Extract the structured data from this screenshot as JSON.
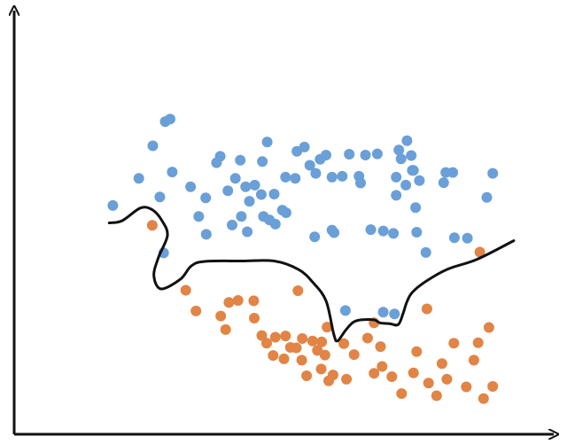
{
  "chart_data": {
    "type": "scatter",
    "title": "",
    "xlabel": "",
    "ylabel": "",
    "xlim": [
      0,
      100
    ],
    "ylim": [
      0,
      100
    ],
    "grid": false,
    "ticks": false,
    "colors": {
      "class_a": "#6a9fd8",
      "class_b": "#e18445",
      "boundary": "#111111",
      "axis": "#111111"
    },
    "series": [
      {
        "points": [
          [
            18.3,
            54.0
          ],
          [
            23.1,
            60.4
          ],
          [
            25.7,
            68.1
          ],
          [
            28.0,
            73.8
          ],
          [
            28.9,
            74.4
          ],
          [
            27.0,
            56.0
          ],
          [
            29.3,
            61.9
          ],
          [
            27.7,
            42.8
          ],
          [
            32.7,
            58.4
          ],
          [
            34.2,
            51.4
          ],
          [
            35.5,
            55.8
          ],
          [
            37.5,
            64.1
          ],
          [
            35.6,
            47.2
          ],
          [
            38.2,
            65.6
          ],
          [
            41.0,
            60.4
          ],
          [
            39.6,
            57.5
          ],
          [
            40.4,
            49.4
          ],
          [
            41.9,
            64.7
          ],
          [
            42.9,
            58.4
          ],
          [
            43.6,
            55.0
          ],
          [
            42.1,
            51.4
          ],
          [
            44.6,
            58.8
          ],
          [
            43.2,
            47.8
          ],
          [
            45.8,
            56.6
          ],
          [
            46.9,
            69.0
          ],
          [
            46.0,
            64.4
          ],
          [
            46.2,
            51.4
          ],
          [
            47.3,
            50.6
          ],
          [
            48.2,
            56.7
          ],
          [
            48.4,
            49.6
          ],
          [
            50.4,
            52.3
          ],
          [
            52.4,
            66.8
          ],
          [
            49.7,
            52.9
          ],
          [
            50.3,
            60.7
          ],
          [
            52.1,
            60.4
          ],
          [
            53.8,
            67.8
          ],
          [
            54.8,
            63.5
          ],
          [
            55.9,
            61.6
          ],
          [
            55.7,
            46.6
          ],
          [
            56.7,
            64.9
          ],
          [
            57.8,
            65.9
          ],
          [
            59.3,
            47.6
          ],
          [
            58.9,
            60.7
          ],
          [
            58.9,
            48.2
          ],
          [
            60.8,
            60.9
          ],
          [
            62.1,
            66.1
          ],
          [
            64.2,
            59.3
          ],
          [
            63.9,
            60.9
          ],
          [
            65.1,
            65.9
          ],
          [
            66.1,
            48.3
          ],
          [
            67.3,
            66.2
          ],
          [
            68.4,
            48.0
          ],
          [
            70.3,
            47.4
          ],
          [
            70.8,
            56.4
          ],
          [
            70.8,
            60.7
          ],
          [
            71.7,
            65.0
          ],
          [
            71.3,
            67.1
          ],
          [
            72.8,
            69.3
          ],
          [
            73.8,
            62.3
          ],
          [
            72.6,
            58.8
          ],
          [
            75.1,
            59.9
          ],
          [
            74.0,
            62.3
          ],
          [
            73.6,
            65.8
          ],
          [
            74.4,
            53.5
          ],
          [
            74.6,
            47.7
          ],
          [
            76.3,
            42.9
          ],
          [
            79.6,
            59.4
          ],
          [
            80.0,
            61.8
          ],
          [
            81.3,
            61.8
          ],
          [
            81.6,
            46.4
          ],
          [
            84.0,
            46.3
          ],
          [
            87.6,
            55.9
          ],
          [
            88.7,
            61.6
          ],
          [
            61.4,
            29.2
          ],
          [
            70.5,
            28.4
          ],
          [
            68.4,
            28.8
          ]
        ]
      },
      {
        "points": [
          [
            25.6,
            49.3
          ],
          [
            31.8,
            34.0
          ],
          [
            33.7,
            29.1
          ],
          [
            38.3,
            27.9
          ],
          [
            39.2,
            24.7
          ],
          [
            39.8,
            31.1
          ],
          [
            41.5,
            31.6
          ],
          [
            44.4,
            31.5
          ],
          [
            44.5,
            27.4
          ],
          [
            45.9,
            23.3
          ],
          [
            46.8,
            21.5
          ],
          [
            48.0,
            18.6
          ],
          [
            48.4,
            22.9
          ],
          [
            50.3,
            23.2
          ],
          [
            50.0,
            17.8
          ],
          [
            51.2,
            20.5
          ],
          [
            52.3,
            20.4
          ],
          [
            52.6,
            33.9
          ],
          [
            53.3,
            17.5
          ],
          [
            53.4,
            22.6
          ],
          [
            55.3,
            22.0
          ],
          [
            54.2,
            13.8
          ],
          [
            56.2,
            19.8
          ],
          [
            56.9,
            15.4
          ],
          [
            57.0,
            21.8
          ],
          [
            58.0,
            25.3
          ],
          [
            57.6,
            18.7
          ],
          [
            58.3,
            12.6
          ],
          [
            59.1,
            14.0
          ],
          [
            61.1,
            21.4
          ],
          [
            61.6,
            13.0
          ],
          [
            63.0,
            18.8
          ],
          [
            65.5,
            22.7
          ],
          [
            66.7,
            26.3
          ],
          [
            66.7,
            14.4
          ],
          [
            67.9,
            20.7
          ],
          [
            68.2,
            16.0
          ],
          [
            70.0,
            13.6
          ],
          [
            71.8,
            9.6
          ],
          [
            74.0,
            14.5
          ],
          [
            74.6,
            19.5
          ],
          [
            76.5,
            29.6
          ],
          [
            76.8,
            12.1
          ],
          [
            78.3,
            9.1
          ],
          [
            79.3,
            16.7
          ],
          [
            80.2,
            13.0
          ],
          [
            81.5,
            21.5
          ],
          [
            83.8,
            11.2
          ],
          [
            85.2,
            17.5
          ],
          [
            86.0,
            21.6
          ],
          [
            87.0,
            8.4
          ],
          [
            88.0,
            25.2
          ],
          [
            88.7,
            11.3
          ],
          [
            86.3,
            43.0
          ]
        ]
      }
    ],
    "boundary": [
      [
        17.6,
        49.9
      ],
      [
        20.0,
        50.4
      ],
      [
        23.4,
        53.4
      ],
      [
        25.6,
        53.0
      ],
      [
        27.4,
        50.4
      ],
      [
        28.4,
        46.9
      ],
      [
        26.7,
        41.6
      ],
      [
        25.9,
        37.4
      ],
      [
        27.2,
        34.3
      ],
      [
        30.8,
        36.6
      ],
      [
        32.8,
        39.7
      ],
      [
        35.3,
        40.8
      ],
      [
        42.3,
        40.9
      ],
      [
        48.2,
        40.9
      ],
      [
        52.7,
        38.9
      ],
      [
        55.4,
        35.8
      ],
      [
        57.8,
        31.5
      ],
      [
        59.2,
        23.8
      ],
      [
        59.9,
        22.0
      ],
      [
        61.4,
        24.5
      ],
      [
        62.8,
        26.4
      ],
      [
        64.3,
        27.0
      ],
      [
        66.7,
        27.0
      ],
      [
        67.8,
        26.3
      ],
      [
        69.6,
        26.1
      ],
      [
        71.2,
        25.9
      ],
      [
        72.1,
        28.6
      ],
      [
        72.8,
        31.3
      ],
      [
        73.8,
        33.5
      ],
      [
        76.2,
        36.0
      ],
      [
        80.2,
        38.9
      ],
      [
        85.8,
        41.3
      ],
      [
        92.6,
        45.7
      ]
    ]
  }
}
